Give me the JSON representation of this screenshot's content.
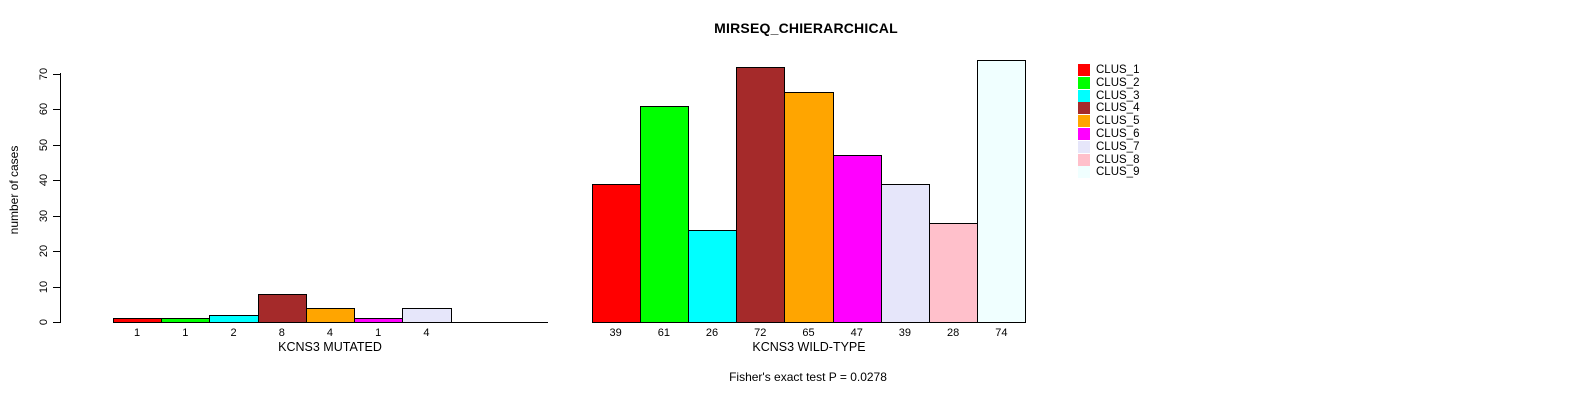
{
  "chart_data": {
    "type": "bar",
    "title": "MIRSEQ_CHIERARCHICAL",
    "ylabel": "number of cases",
    "annotation": "Fisher's exact test P = 0.0278",
    "ylim": [
      0,
      74
    ],
    "yticks": [
      0,
      10,
      20,
      30,
      40,
      50,
      60,
      70
    ],
    "grid": false,
    "legend_position": "right",
    "legend": [
      "CLUS_1",
      "CLUS_2",
      "CLUS_3",
      "CLUS_4",
      "CLUS_5",
      "CLUS_6",
      "CLUS_7",
      "CLUS_8",
      "CLUS_9"
    ],
    "colors": [
      "#FF0000",
      "#00FF00",
      "#00FFFF",
      "#A52A2A",
      "#FFA500",
      "#FF00FF",
      "#E6E6FA",
      "#FFC0CB",
      "#F0FFFF"
    ],
    "groups": [
      {
        "xlabel": "KCNS3 MUTATED",
        "categories": [
          "CLUS_1",
          "CLUS_2",
          "CLUS_3",
          "CLUS_4",
          "CLUS_5",
          "CLUS_6",
          "CLUS_7",
          "CLUS_8",
          "CLUS_9"
        ],
        "values": [
          1,
          1,
          2,
          8,
          4,
          1,
          4,
          0,
          0
        ],
        "bar_labels": [
          "1",
          "1",
          "2",
          "8",
          "4",
          "1",
          "4",
          "",
          ""
        ]
      },
      {
        "xlabel": "KCNS3 WILD-TYPE",
        "categories": [
          "CLUS_1",
          "CLUS_2",
          "CLUS_3",
          "CLUS_4",
          "CLUS_5",
          "CLUS_6",
          "CLUS_7",
          "CLUS_8",
          "CLUS_9"
        ],
        "values": [
          39,
          61,
          26,
          72,
          65,
          47,
          39,
          28,
          74
        ],
        "bar_labels": [
          "39",
          "61",
          "26",
          "72",
          "65",
          "47",
          "39",
          "28",
          "74"
        ]
      }
    ]
  }
}
